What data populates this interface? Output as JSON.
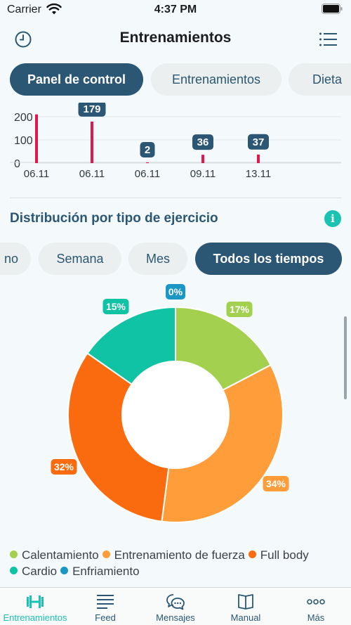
{
  "status_bar": {
    "carrier": "Carrier",
    "time": "4:37 PM"
  },
  "header": {
    "title": "Entrenamientos"
  },
  "top_tabs": [
    {
      "label": "Panel de control",
      "active": true
    },
    {
      "label": "Entrenamientos",
      "active": false
    },
    {
      "label": "Dieta",
      "active": false
    }
  ],
  "bar_chart_data": {
    "type": "bar",
    "categories": [
      "06.11",
      "06.11",
      "06.11",
      "09.11",
      "13.11"
    ],
    "values": [
      210,
      179,
      2,
      36,
      37
    ],
    "data_labels": [
      "",
      "179",
      "2",
      "36",
      "37"
    ],
    "y_ticks": [
      "200",
      "100",
      "0"
    ],
    "ylim": [
      0,
      230
    ],
    "bar_color": "#e0184c"
  },
  "distribution": {
    "title": "Distribución por tipo de ejercicio",
    "period_tabs": [
      {
        "label": "no",
        "active": false
      },
      {
        "label": "Semana",
        "active": false
      },
      {
        "label": "Mes",
        "active": false
      },
      {
        "label": "Todos los tiempos",
        "active": true
      }
    ]
  },
  "chart_data": {
    "type": "pie",
    "slices": [
      {
        "name": "Calentamiento",
        "value": 17,
        "label": "17%",
        "color": "#a3d04e"
      },
      {
        "name": "Entrenamiento de fuerza",
        "value": 34,
        "label": "34%",
        "color": "#ff9d3b"
      },
      {
        "name": "Full body",
        "value": 32,
        "label": "32%",
        "color": "#fa6b0f"
      },
      {
        "name": "Cardio",
        "value": 15,
        "label": "15%",
        "color": "#0fc3a4"
      },
      {
        "name": "Enfriamiento",
        "value": 0,
        "label": "0%",
        "color": "#1b97c5"
      }
    ],
    "legend_placement": "bottom"
  },
  "tab_bar": [
    {
      "label": "Entrenamientos",
      "icon": "dumbbell-icon",
      "active": true
    },
    {
      "label": "Feed",
      "icon": "feed-icon",
      "active": false
    },
    {
      "label": "Mensajes",
      "icon": "chat-icon",
      "active": false
    },
    {
      "label": "Manual",
      "icon": "book-icon",
      "active": false
    },
    {
      "label": "Más",
      "icon": "more-icon",
      "active": false
    }
  ]
}
